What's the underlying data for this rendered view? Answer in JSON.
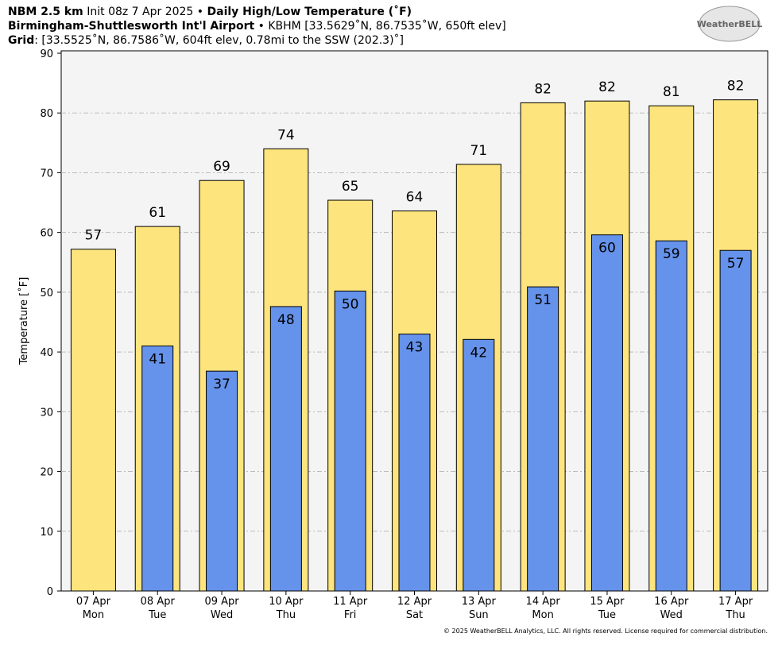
{
  "chart_data": {
    "type": "overlay_bar",
    "title": "NBM 2.5 km",
    "init": " Init 08z 7 Apr 2025 • ",
    "product": "Daily High/Low Temperature (˚F)",
    "station": "Birmingham-Shuttlesworth Int'l Airport",
    "station_info": " • KBHM [33.5629˚N, 86.7535˚W, 650ft elev]",
    "grid_label": "Grid",
    "grid_info": ": [33.5525˚N, 86.7586˚W, 604ft elev, 0.78mi to the SSW (202.3)˚]",
    "logo": "WeatherBELL",
    "footer": "© 2025 WeatherBELL Analytics, LLC. All rights reserved. License required for commercial distribution.",
    "ylabel": "Temperature [˚F]",
    "categories": [
      "07 Apr",
      "08 Apr",
      "09 Apr",
      "10 Apr",
      "11 Apr",
      "12 Apr",
      "13 Apr",
      "14 Apr",
      "15 Apr",
      "16 Apr",
      "17 Apr"
    ],
    "weekdays": [
      "Mon",
      "Tue",
      "Wed",
      "Thu",
      "Fri",
      "Sat",
      "Sun",
      "Mon",
      "Tue",
      "Wed",
      "Thu"
    ],
    "series": [
      {
        "name": "High",
        "color": "#fde47d",
        "values": [
          57.2,
          61,
          68.7,
          74,
          65.4,
          63.6,
          71.4,
          81.7,
          82,
          81.2,
          82.2
        ],
        "value_labels": [
          "57",
          "61",
          "69",
          "74",
          "65",
          "64",
          "71",
          "82",
          "82",
          "81",
          "82"
        ]
      },
      {
        "name": "Low",
        "color": "#6592ea",
        "values": [
          null,
          41,
          36.8,
          47.6,
          50.2,
          43,
          42.1,
          50.9,
          59.6,
          58.6,
          57
        ],
        "value_labels": [
          null,
          "41",
          "37",
          "48",
          "50",
          "43",
          "42",
          "51",
          "60",
          "59",
          "57"
        ]
      }
    ],
    "ylim": [
      0,
      90
    ],
    "yticks": [
      0,
      10,
      20,
      30,
      40,
      50,
      60,
      70,
      80,
      90
    ],
    "grid": true
  }
}
